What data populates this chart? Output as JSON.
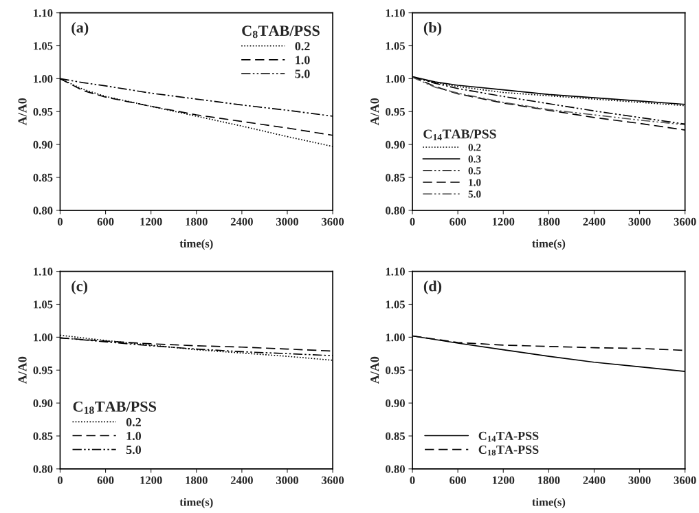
{
  "chart_data": [
    {
      "type": "line",
      "xlabel": "time(s)",
      "ylabel": "A/A0",
      "annotations": [
        "(a)"
      ],
      "legend_title": "C$_{8}$TAB/PSS",
      "legend": "top right",
      "grid": false,
      "marker": "none",
      "xlim": [
        0,
        3600
      ],
      "xticks": [
        0,
        600,
        1200,
        1800,
        2400,
        3000,
        3600
      ],
      "ylim": [
        0.8,
        1.1
      ],
      "yticks": [
        {
          "value": 0.8,
          "label": "0.80"
        },
        {
          "value": 0.85,
          "label": "0.85"
        },
        {
          "value": 0.9,
          "label": "0.90"
        },
        {
          "value": 0.95,
          "label": "0.95"
        },
        {
          "value": 1.0,
          "label": "1.00"
        },
        {
          "value": 1.05,
          "label": "1.05"
        },
        {
          "value": 1.1,
          "label": "1.10"
        }
      ],
      "x": [
        0,
        300,
        600,
        1200,
        1800,
        2400,
        3000,
        3600
      ],
      "series": [
        {
          "name": "0.2",
          "color": "#000000",
          "line_style": "dotted",
          "values": [
            1.0,
            0.984,
            0.973,
            0.958,
            0.943,
            0.928,
            0.912,
            0.897
          ]
        },
        {
          "name": "1.0",
          "color": "#000000",
          "line_style": "dashed",
          "values": [
            1.0,
            0.982,
            0.972,
            0.958,
            0.945,
            0.935,
            0.925,
            0.914
          ]
        },
        {
          "name": "5.0",
          "color": "#000000",
          "line_style": "dashdot",
          "values": [
            1.0,
            0.994,
            0.989,
            0.978,
            0.969,
            0.96,
            0.952,
            0.943
          ]
        }
      ]
    },
    {
      "type": "line",
      "xlabel": "time(s)",
      "ylabel": "A/A0",
      "annotations": [
        "(b)"
      ],
      "legend_title": "C$_{14}$TAB/PSS",
      "legend": "bottom left",
      "grid": false,
      "marker": "none",
      "xlim": [
        0,
        3600
      ],
      "xticks": [
        0,
        600,
        1200,
        1800,
        2400,
        3000,
        3600
      ],
      "ylim": [
        0.8,
        1.1
      ],
      "yticks": [
        {
          "value": 0.8,
          "label": "0.80"
        },
        {
          "value": 0.85,
          "label": "0.85"
        },
        {
          "value": 0.9,
          "label": "0.90"
        },
        {
          "value": 0.95,
          "label": "0.95"
        },
        {
          "value": 1.0,
          "label": "1.00"
        },
        {
          "value": 1.05,
          "label": "1.05"
        },
        {
          "value": 1.1,
          "label": "1.10"
        }
      ],
      "x": [
        0,
        300,
        600,
        1200,
        1800,
        2400,
        3000,
        3600
      ],
      "series": [
        {
          "name": "0.2",
          "color": "#000000",
          "line_style": "dotted",
          "values": [
            1.003,
            0.994,
            0.988,
            0.979,
            0.974,
            0.969,
            0.964,
            0.959
          ]
        },
        {
          "name": "0.3",
          "color": "#000000",
          "line_style": "solid",
          "values": [
            1.003,
            0.995,
            0.99,
            0.983,
            0.976,
            0.971,
            0.966,
            0.961
          ]
        },
        {
          "name": "0.5",
          "color": "#000000",
          "line_style": "dashdot",
          "values": [
            1.003,
            0.993,
            0.985,
            0.973,
            0.962,
            0.951,
            0.941,
            0.931
          ]
        },
        {
          "name": "1.0",
          "color": "#000000",
          "line_style": "dashed",
          "values": [
            1.003,
            0.988,
            0.977,
            0.963,
            0.952,
            0.941,
            0.932,
            0.922
          ]
        },
        {
          "name": "5.0",
          "color": "#555555",
          "line_style": "dashdot",
          "values": [
            1.002,
            0.987,
            0.978,
            0.964,
            0.953,
            0.945,
            0.937,
            0.93
          ]
        }
      ]
    },
    {
      "type": "line",
      "xlabel": "time(s)",
      "ylabel": "A/A0",
      "annotations": [
        "(c)"
      ],
      "legend_title": "C$_{18}$TAB/PSS",
      "legend": "bottom left",
      "grid": false,
      "marker": "none",
      "xlim": [
        0,
        3600
      ],
      "xticks": [
        0,
        600,
        1200,
        1800,
        2400,
        3000,
        3600
      ],
      "ylim": [
        0.8,
        1.1
      ],
      "yticks": [
        {
          "value": 0.8,
          "label": "0.80"
        },
        {
          "value": 0.85,
          "label": "0.85"
        },
        {
          "value": 0.9,
          "label": "0.90"
        },
        {
          "value": 0.95,
          "label": "0.95"
        },
        {
          "value": 1.0,
          "label": "1.00"
        },
        {
          "value": 1.05,
          "label": "1.05"
        },
        {
          "value": 1.1,
          "label": "1.10"
        }
      ],
      "x": [
        0,
        600,
        1200,
        1800,
        2400,
        3000,
        3600
      ],
      "series": [
        {
          "name": "0.2",
          "color": "#000000",
          "line_style": "dotted",
          "values": [
            1.003,
            0.995,
            0.988,
            0.981,
            0.976,
            0.971,
            0.965
          ]
        },
        {
          "name": "1.0",
          "color": "#000000",
          "line_style": "dashed",
          "values": [
            0.999,
            0.994,
            0.99,
            0.987,
            0.985,
            0.982,
            0.979
          ]
        },
        {
          "name": "5.0",
          "color": "#000000",
          "line_style": "dashdot",
          "values": [
            0.999,
            0.993,
            0.987,
            0.982,
            0.978,
            0.975,
            0.972
          ]
        }
      ]
    },
    {
      "type": "line",
      "xlabel": "time(s)",
      "ylabel": "A/A0",
      "annotations": [
        "(d)"
      ],
      "legend": "bottom left",
      "grid": false,
      "marker": "none",
      "xlim": [
        0,
        3600
      ],
      "xticks": [
        0,
        600,
        1200,
        1800,
        2400,
        3000,
        3600
      ],
      "ylim": [
        0.8,
        1.1
      ],
      "yticks": [
        {
          "value": 0.8,
          "label": "0.80"
        },
        {
          "value": 0.85,
          "label": "0.85"
        },
        {
          "value": 0.9,
          "label": "0.90"
        },
        {
          "value": 0.95,
          "label": "0.95"
        },
        {
          "value": 1.0,
          "label": "1.00"
        },
        {
          "value": 1.05,
          "label": "1.05"
        },
        {
          "value": 1.1,
          "label": "1.10"
        }
      ],
      "x": [
        0,
        600,
        1200,
        1800,
        2400,
        3000,
        3600
      ],
      "series": [
        {
          "name": "C$_{14}$TA-PSS",
          "color": "#000000",
          "line_style": "solid",
          "values": [
            1.002,
            0.991,
            0.981,
            0.971,
            0.962,
            0.955,
            0.948
          ]
        },
        {
          "name": "C$_{18}$TA-PSS",
          "color": "#000000",
          "line_style": "dashed",
          "values": [
            1.002,
            0.992,
            0.988,
            0.986,
            0.984,
            0.983,
            0.98
          ]
        }
      ]
    }
  ]
}
